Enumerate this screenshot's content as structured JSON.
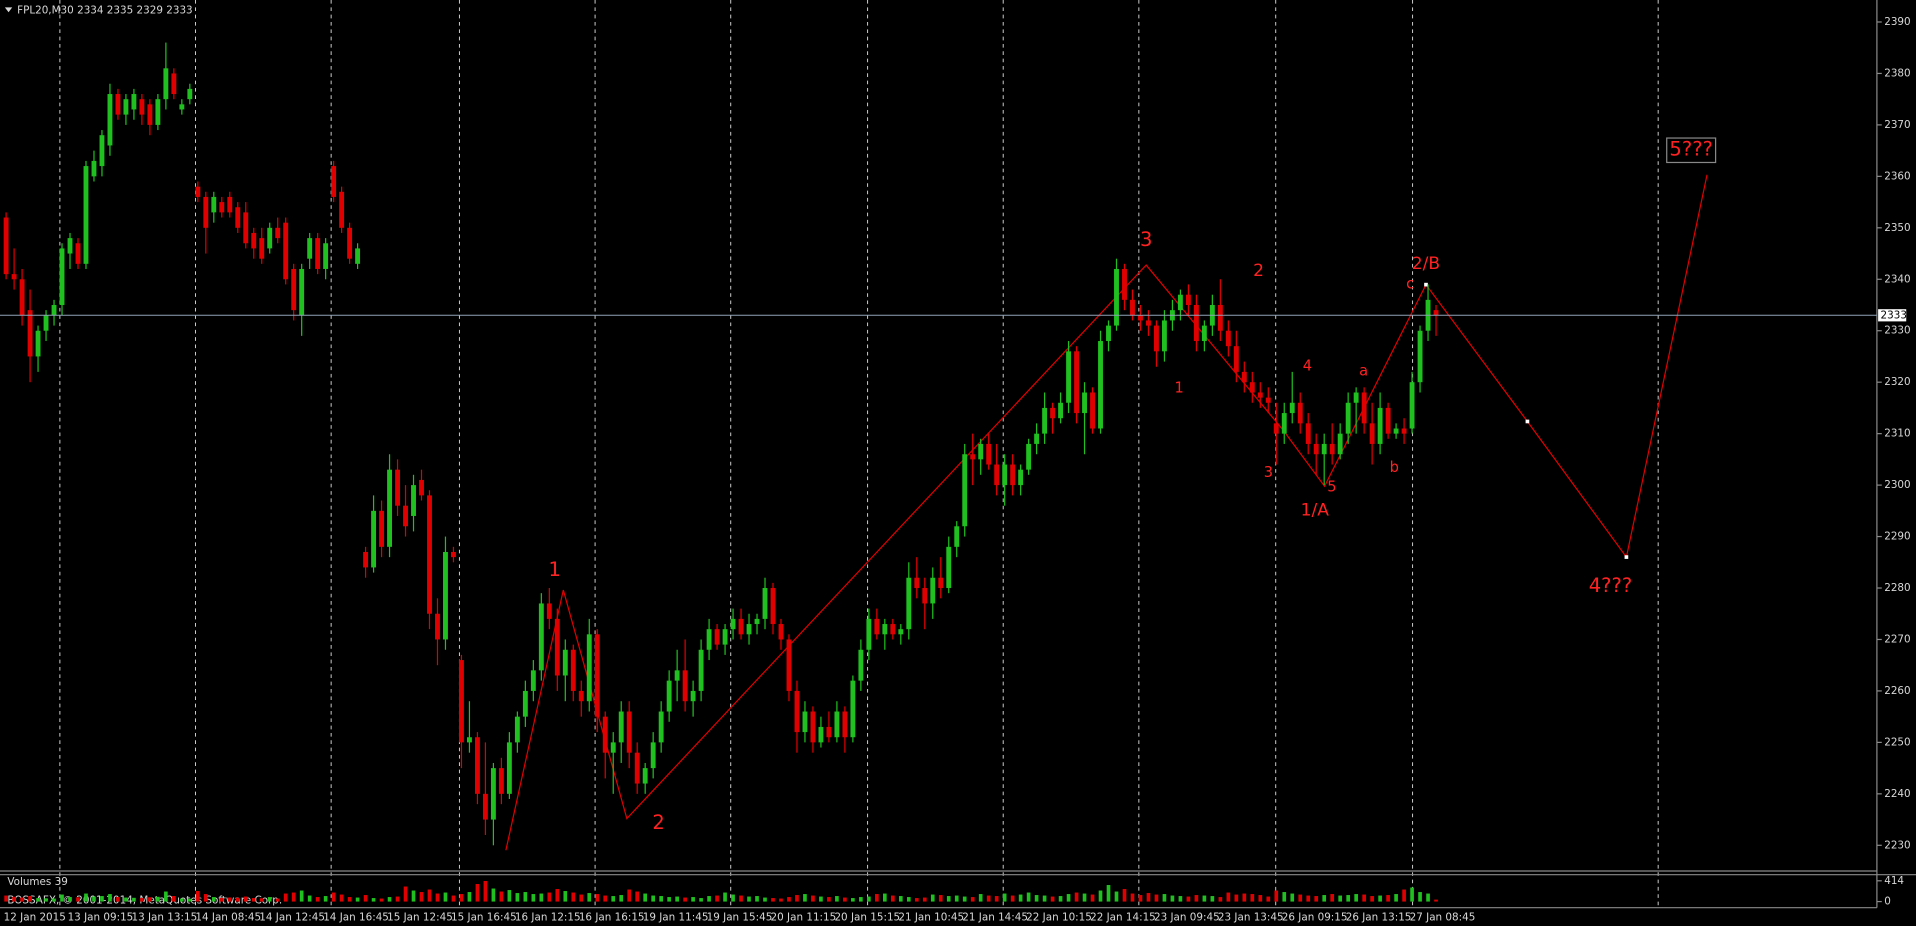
{
  "chart_data": {
    "type": "candlestick",
    "symbol": "FPL20,M30",
    "volume_label": "Volumes",
    "copyright": "BOSSAFX, © 2001-2014, MetaQuotes Software Corp.",
    "up_color": "#1fc01f",
    "down_color": "#e00000",
    "ylim": [
      2225,
      2392
    ],
    "yticks": [
      2230,
      2240,
      2250,
      2260,
      2270,
      2280,
      2290,
      2300,
      2310,
      2320,
      2330,
      2340,
      2350,
      2360,
      2370,
      2380,
      2390
    ],
    "volume_ylim": [
      0,
      414
    ],
    "volume_yticks": [
      0,
      414
    ],
    "categories": [
      "12 Jan 2015",
      "13 Jan 09:15",
      "13 Jan 13:15",
      "14 Jan 08:45",
      "14 Jan 12:45",
      "14 Jan 16:45",
      "15 Jan 12:45",
      "15 Jan 16:45",
      "16 Jan 12:15",
      "16 Jan 16:15",
      "19 Jan 11:45",
      "19 Jan 15:45",
      "20 Jan 11:15",
      "20 Jan 15:15",
      "21 Jan 10:45",
      "21 Jan 14:45",
      "22 Jan 10:15",
      "22 Jan 14:15",
      "23 Jan 09:45",
      "23 Jan 13:45",
      "26 Jan 09:15",
      "26 Jan 13:15",
      "27 Jan 08:45"
    ],
    "annotations": [
      "1",
      "2",
      "3",
      "2",
      "1",
      "4",
      "3",
      "5",
      "1/A",
      "a",
      "b",
      "c",
      "2/B",
      "4???",
      "5???"
    ],
    "ohlc": [
      [
        2352,
        2353,
        2340,
        2341
      ],
      [
        2341,
        2346,
        2338,
        2340
      ],
      [
        2340,
        2342,
        2331,
        2333
      ],
      [
        2334,
        2338,
        2320,
        2325
      ],
      [
        2325,
        2331,
        2322,
        2330
      ],
      [
        2330,
        2334,
        2328,
        2333
      ],
      [
        2333,
        2336,
        2331,
        2335
      ],
      [
        2335,
        2347,
        2333,
        2346
      ],
      [
        2345,
        2349,
        2342,
        2348
      ],
      [
        2347,
        2348,
        2342,
        2343
      ],
      [
        2343,
        2363,
        2342,
        2362
      ],
      [
        2360,
        2365,
        2359,
        2363
      ],
      [
        2362,
        2369,
        2360,
        2368
      ],
      [
        2366,
        2378,
        2364,
        2376
      ],
      [
        2376,
        2377,
        2371,
        2372
      ],
      [
        2372,
        2376,
        2370,
        2375
      ],
      [
        2373,
        2377,
        2371,
        2376
      ],
      [
        2375,
        2376,
        2370,
        2372
      ],
      [
        2374,
        2375,
        2368,
        2370
      ],
      [
        2370,
        2376,
        2369,
        2375
      ],
      [
        2375,
        2386,
        2373,
        2381
      ],
      [
        2380,
        2381,
        2375,
        2376
      ],
      [
        2373,
        2375,
        2372,
        2374
      ],
      [
        2375,
        2378,
        2374,
        2377
      ],
      [
        2358,
        2359,
        2355,
        2356
      ],
      [
        2356,
        2357,
        2345,
        2350
      ],
      [
        2353,
        2357,
        2351,
        2356
      ],
      [
        2355,
        2356,
        2352,
        2353
      ],
      [
        2356,
        2357,
        2352,
        2353
      ],
      [
        2354,
        2355,
        2349,
        2350
      ],
      [
        2353,
        2355,
        2346,
        2347
      ],
      [
        2349,
        2350,
        2344,
        2346
      ],
      [
        2348,
        2350,
        2343,
        2344
      ],
      [
        2346,
        2351,
        2345,
        2350
      ],
      [
        2350,
        2352,
        2347,
        2348
      ],
      [
        2351,
        2352,
        2339,
        2340
      ],
      [
        2342,
        2343,
        2332,
        2334
      ],
      [
        2333,
        2343,
        2329,
        2342
      ],
      [
        2344,
        2349,
        2342,
        2348
      ],
      [
        2348,
        2349,
        2341,
        2342
      ],
      [
        2342,
        2348,
        2340,
        2347
      ],
      [
        2362,
        2363,
        2355,
        2356
      ],
      [
        2357,
        2358,
        2349,
        2350
      ],
      [
        2350,
        2351,
        2343,
        2344
      ],
      [
        2343,
        2347,
        2342,
        2346
      ],
      [
        2287,
        2288,
        2282,
        2284
      ],
      [
        2284,
        2298,
        2283,
        2295
      ],
      [
        2295,
        2297,
        2286,
        2288
      ],
      [
        2288,
        2306,
        2286,
        2303
      ],
      [
        2303,
        2305,
        2294,
        2296
      ],
      [
        2296,
        2300,
        2290,
        2292
      ],
      [
        2294,
        2302,
        2291,
        2300
      ],
      [
        2301,
        2303,
        2297,
        2298
      ],
      [
        2298,
        2299,
        2272,
        2275
      ],
      [
        2275,
        2278,
        2265,
        2270
      ],
      [
        2270,
        2290,
        2268,
        2287
      ],
      [
        2287,
        2288,
        2285,
        2286
      ],
      [
        2266,
        2267,
        2245,
        2250
      ],
      [
        2250,
        2258,
        2248,
        2251
      ],
      [
        2251,
        2252,
        2238,
        2240
      ],
      [
        2240,
        2250,
        2232,
        2235
      ],
      [
        2235,
        2246,
        2230,
        2245
      ],
      [
        2245,
        2247,
        2238,
        2240
      ],
      [
        2240,
        2252,
        2239,
        2250
      ],
      [
        2250,
        2256,
        2248,
        2255
      ],
      [
        2255,
        2262,
        2253,
        2260
      ],
      [
        2260,
        2266,
        2258,
        2264
      ],
      [
        2264,
        2279,
        2262,
        2277
      ],
      [
        2277,
        2280,
        2272,
        2274
      ],
      [
        2274,
        2276,
        2260,
        2263
      ],
      [
        2263,
        2270,
        2258,
        2268
      ],
      [
        2268,
        2269,
        2258,
        2260
      ],
      [
        2260,
        2262,
        2255,
        2258
      ],
      [
        2258,
        2274,
        2256,
        2271
      ],
      [
        2271,
        2272,
        2252,
        2255
      ],
      [
        2255,
        2256,
        2243,
        2248
      ],
      [
        2248,
        2252,
        2240,
        2250
      ],
      [
        2250,
        2258,
        2246,
        2256
      ],
      [
        2256,
        2258,
        2245,
        2248
      ],
      [
        2248,
        2250,
        2240,
        2242
      ],
      [
        2242,
        2246,
        2240,
        2245
      ],
      [
        2245,
        2252,
        2243,
        2250
      ],
      [
        2250,
        2258,
        2248,
        2256
      ],
      [
        2256,
        2264,
        2254,
        2262
      ],
      [
        2262,
        2268,
        2258,
        2264
      ],
      [
        2264,
        2270,
        2256,
        2258
      ],
      [
        2258,
        2262,
        2255,
        2260
      ],
      [
        2260,
        2270,
        2258,
        2268
      ],
      [
        2268,
        2274,
        2266,
        2272
      ],
      [
        2272,
        2273,
        2268,
        2269
      ],
      [
        2269,
        2273,
        2267,
        2272
      ],
      [
        2272,
        2276,
        2270,
        2274
      ],
      [
        2274,
        2276,
        2270,
        2271
      ],
      [
        2271,
        2275,
        2269,
        2273
      ],
      [
        2273,
        2275,
        2271,
        2274
      ],
      [
        2274,
        2282,
        2272,
        2280
      ],
      [
        2280,
        2281,
        2271,
        2273
      ],
      [
        2273,
        2274,
        2268,
        2270
      ],
      [
        2270,
        2271,
        2258,
        2260
      ],
      [
        2260,
        2262,
        2248,
        2252
      ],
      [
        2252,
        2258,
        2250,
        2256
      ],
      [
        2256,
        2257,
        2248,
        2250
      ],
      [
        2250,
        2255,
        2249,
        2253
      ],
      [
        2253,
        2256,
        2250,
        2251
      ],
      [
        2251,
        2258,
        2250,
        2256
      ],
      [
        2256,
        2257,
        2248,
        2251
      ],
      [
        2251,
        2263,
        2250,
        2262
      ],
      [
        2262,
        2270,
        2260,
        2268
      ],
      [
        2268,
        2276,
        2266,
        2274
      ],
      [
        2274,
        2276,
        2270,
        2271
      ],
      [
        2271,
        2274,
        2268,
        2273
      ],
      [
        2273,
        2274,
        2270,
        2271
      ],
      [
        2271,
        2273,
        2269,
        2272
      ],
      [
        2272,
        2285,
        2270,
        2282
      ],
      [
        2282,
        2286,
        2278,
        2280
      ],
      [
        2280,
        2282,
        2272,
        2277
      ],
      [
        2277,
        2284,
        2274,
        2282
      ],
      [
        2282,
        2286,
        2278,
        2280
      ],
      [
        2280,
        2290,
        2279,
        2288
      ],
      [
        2288,
        2293,
        2286,
        2292
      ],
      [
        2292,
        2308,
        2290,
        2306
      ],
      [
        2306,
        2310,
        2300,
        2305
      ],
      [
        2305,
        2309,
        2302,
        2308
      ],
      [
        2308,
        2310,
        2303,
        2304
      ],
      [
        2304,
        2308,
        2298,
        2300
      ],
      [
        2300,
        2306,
        2296,
        2304
      ],
      [
        2304,
        2306,
        2298,
        2300
      ],
      [
        2300,
        2304,
        2298,
        2303
      ],
      [
        2303,
        2309,
        2302,
        2308
      ],
      [
        2308,
        2312,
        2306,
        2310
      ],
      [
        2310,
        2318,
        2308,
        2315
      ],
      [
        2315,
        2316,
        2310,
        2313
      ],
      [
        2313,
        2318,
        2312,
        2316
      ],
      [
        2316,
        2328,
        2314,
        2326
      ],
      [
        2326,
        2327,
        2312,
        2314
      ],
      [
        2314,
        2320,
        2306,
        2318
      ],
      [
        2318,
        2319,
        2310,
        2311
      ],
      [
        2311,
        2330,
        2310,
        2328
      ],
      [
        2328,
        2332,
        2326,
        2331
      ],
      [
        2331,
        2344,
        2330,
        2342
      ],
      [
        2342,
        2343,
        2334,
        2336
      ],
      [
        2336,
        2338,
        2332,
        2333
      ],
      [
        2333,
        2335,
        2330,
        2332
      ],
      [
        2332,
        2334,
        2329,
        2331
      ],
      [
        2331,
        2332,
        2323,
        2326
      ],
      [
        2326,
        2334,
        2324,
        2332
      ],
      [
        2332,
        2336,
        2330,
        2334
      ],
      [
        2334,
        2338,
        2332,
        2337
      ],
      [
        2337,
        2339,
        2333,
        2335
      ],
      [
        2335,
        2337,
        2326,
        2328
      ],
      [
        2328,
        2332,
        2326,
        2331
      ],
      [
        2331,
        2337,
        2329,
        2335
      ],
      [
        2335,
        2340,
        2328,
        2330
      ],
      [
        2330,
        2332,
        2325,
        2327
      ],
      [
        2327,
        2330,
        2320,
        2322
      ],
      [
        2322,
        2324,
        2318,
        2320
      ],
      [
        2320,
        2322,
        2316,
        2318
      ],
      [
        2318,
        2320,
        2315,
        2317
      ],
      [
        2317,
        2319,
        2314,
        2316
      ],
      [
        2312,
        2316,
        2304,
        2310
      ],
      [
        2310,
        2316,
        2308,
        2314
      ],
      [
        2314,
        2322,
        2312,
        2316
      ],
      [
        2316,
        2318,
        2310,
        2312
      ],
      [
        2312,
        2314,
        2306,
        2308
      ],
      [
        2308,
        2310,
        2302,
        2306
      ],
      [
        2306,
        2310,
        2300,
        2308
      ],
      [
        2308,
        2312,
        2304,
        2306
      ],
      [
        2306,
        2312,
        2305,
        2310
      ],
      [
        2310,
        2318,
        2308,
        2316
      ],
      [
        2316,
        2319,
        2310,
        2318
      ],
      [
        2318,
        2319,
        2310,
        2312
      ],
      [
        2312,
        2316,
        2304,
        2308
      ],
      [
        2308,
        2318,
        2306,
        2315
      ],
      [
        2315,
        2316,
        2309,
        2310
      ],
      [
        2310,
        2312,
        2309,
        2311
      ],
      [
        2311,
        2313,
        2308,
        2310
      ],
      [
        2311,
        2322,
        2310,
        2320
      ],
      [
        2320,
        2331,
        2318,
        2330
      ],
      [
        2330,
        2339,
        2328,
        2336
      ],
      [
        2334,
        2335,
        2329,
        2333
      ]
    ],
    "volumes": [
      120,
      95,
      80,
      110,
      70,
      65,
      60,
      140,
      90,
      85,
      160,
      100,
      110,
      150,
      90,
      80,
      75,
      70,
      85,
      95,
      200,
      110,
      60,
      55,
      210,
      150,
      90,
      70,
      80,
      75,
      100,
      70,
      65,
      90,
      60,
      160,
      180,
      220,
      120,
      90,
      110,
      180,
      140,
      90,
      80,
      130,
      70,
      60,
      90,
      100,
      300,
      220,
      190,
      240,
      160,
      180,
      120,
      150,
      190,
      350,
      410,
      260,
      200,
      230,
      170,
      190,
      150,
      160,
      180,
      250,
      210,
      180,
      140,
      170,
      150,
      120,
      110,
      130,
      240,
      200,
      160,
      120,
      110,
      90,
      100,
      80,
      90,
      70,
      110,
      120,
      180,
      140,
      120,
      100,
      110,
      80,
      70,
      60,
      90,
      130,
      150,
      120,
      100,
      90,
      110,
      80,
      70,
      90,
      100,
      150,
      160,
      120,
      110,
      90,
      70,
      80,
      140,
      130,
      110,
      120,
      100,
      90,
      150,
      120,
      110,
      160,
      120,
      140,
      180,
      130,
      120,
      100,
      110,
      150,
      180,
      160,
      140,
      220,
      330,
      200,
      250,
      160,
      130,
      170,
      140,
      150,
      120,
      110,
      100,
      130,
      120,
      110,
      90,
      180,
      140,
      160,
      150,
      130,
      100,
      220,
      190,
      160,
      140,
      120,
      110,
      130,
      150,
      120,
      130,
      150,
      140,
      110,
      120,
      130,
      150,
      240,
      280,
      190,
      160,
      39
    ]
  }
}
